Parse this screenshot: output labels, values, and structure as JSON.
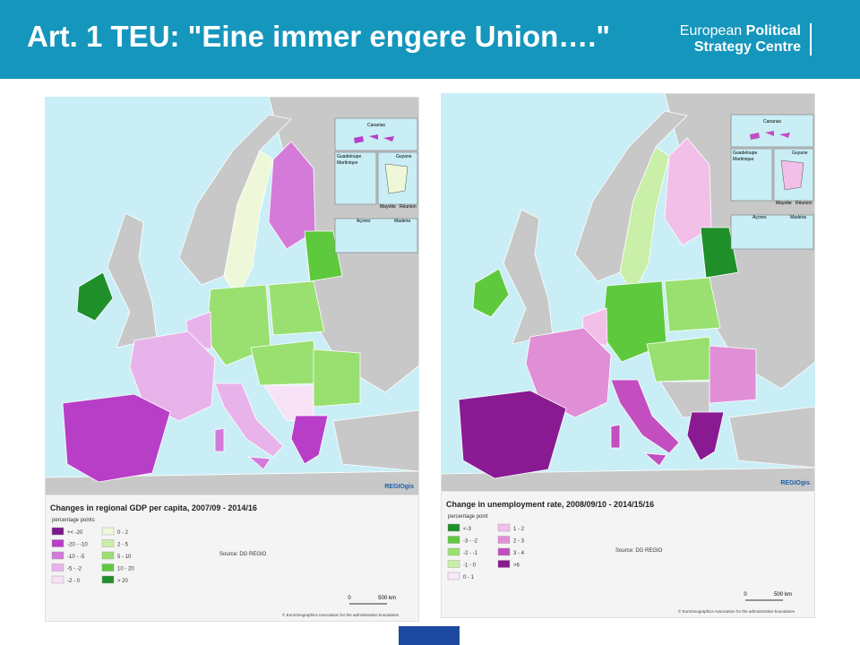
{
  "header": {
    "title": "Art. 1 TEU: \"Eine immer engere Union….\"",
    "logo": [
      "European",
      "Political",
      "Strategy Centre"
    ]
  },
  "maps": [
    {
      "title": "Changes in regional GDP per capita, 2007/09 - 2014/16",
      "legend_title": "percentage points",
      "legend": [
        {
          "label": "+< -20",
          "color": "#7b1a8c"
        },
        {
          "label": "-20 - -10",
          "color": "#b83ec8"
        },
        {
          "label": "-10 - -5",
          "color": "#d47ad9"
        },
        {
          "label": "-5 - -2",
          "color": "#e8b3ea"
        },
        {
          "label": "-2 - 0",
          "color": "#f7e2f6"
        },
        {
          "label": "0 - 2",
          "color": "#eef8d8"
        },
        {
          "label": "2 - 5",
          "color": "#c9efa8"
        },
        {
          "label": "5 - 10",
          "color": "#99e070"
        },
        {
          "label": "10 - 20",
          "color": "#5fc93e"
        },
        {
          "label": "> 20",
          "color": "#1f8f2a"
        }
      ],
      "source": "Source: DG REGIO",
      "scale": [
        "0",
        "500 km"
      ],
      "copyright": "© EuroGeographics Association for the administrative boundaries",
      "brand": "REGIOgis",
      "insets": [
        "Canarias",
        "Guadeloupe",
        "Martinique",
        "Guyane",
        "Mayotte",
        "Réunion",
        "Açores",
        "Madeira"
      ]
    },
    {
      "title": "Change in unemployment rate, 2008/09/10 - 2014/15/16",
      "legend_title": "percentage point",
      "legend": [
        {
          "label": "<-3",
          "color": "#1f8f2a"
        },
        {
          "label": "-3 - -2",
          "color": "#5fc93e"
        },
        {
          "label": "-2 - -1",
          "color": "#99e070"
        },
        {
          "label": "-1 - 0",
          "color": "#c9efa8"
        },
        {
          "label": "0 - 1",
          "color": "#fbe6f6"
        },
        {
          "label": "1 - 2",
          "color": "#f2bfe8"
        },
        {
          "label": "2 - 3",
          "color": "#e08fd6"
        },
        {
          "label": "3 - 4",
          "color": "#c24ec0"
        },
        {
          "label": ">6",
          "color": "#8a1a92"
        }
      ],
      "source": "Source: DG REGIO",
      "scale": [
        "0",
        "500 km"
      ],
      "copyright": "© EuroGeographics Association for the administrative boundaries",
      "brand": "REGIOgis",
      "insets": [
        "Canarias",
        "Guadeloupe",
        "Martinique",
        "Guyane",
        "Mayotte",
        "Réunion",
        "Açores",
        "Madeira"
      ]
    }
  ]
}
